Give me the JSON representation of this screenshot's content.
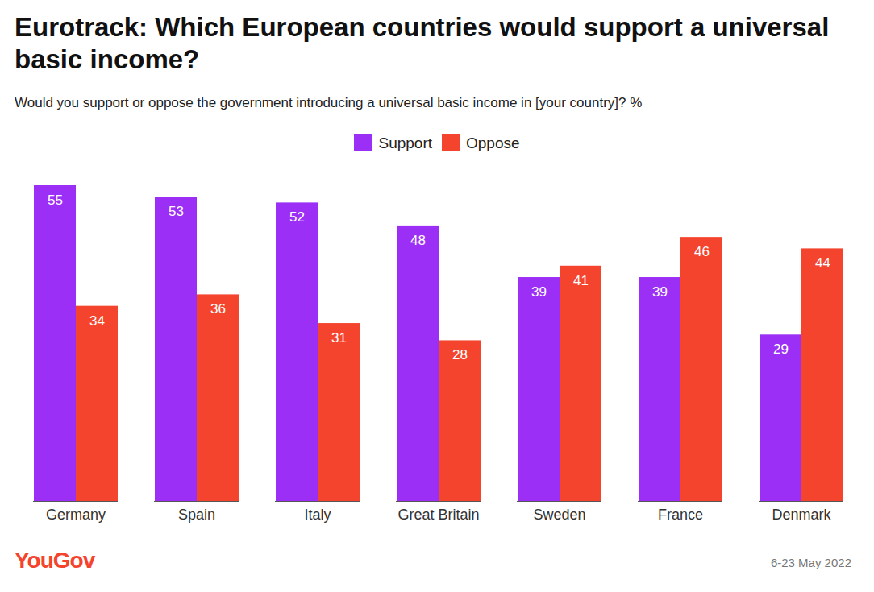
{
  "chart_data": {
    "type": "bar",
    "title": "Eurotrack: Which European countries would support a universal basic income?",
    "subtitle": "Would you support or oppose the government introducing a universal basic income in [your country]? %",
    "categories": [
      "Germany",
      "Spain",
      "Italy",
      "Great Britain",
      "Sweden",
      "France",
      "Denmark"
    ],
    "series": [
      {
        "name": "Support",
        "color": "#9b2ff5",
        "values": [
          55,
          53,
          52,
          48,
          39,
          39,
          29
        ]
      },
      {
        "name": "Oppose",
        "color": "#f4442e",
        "values": [
          34,
          36,
          31,
          28,
          41,
          46,
          44
        ]
      }
    ],
    "ylim": [
      0,
      55
    ],
    "yticks": [],
    "data_labels": true,
    "tick_labels": "x",
    "legend": "top",
    "source": "YouGov",
    "date": "6-23 May 2022"
  }
}
